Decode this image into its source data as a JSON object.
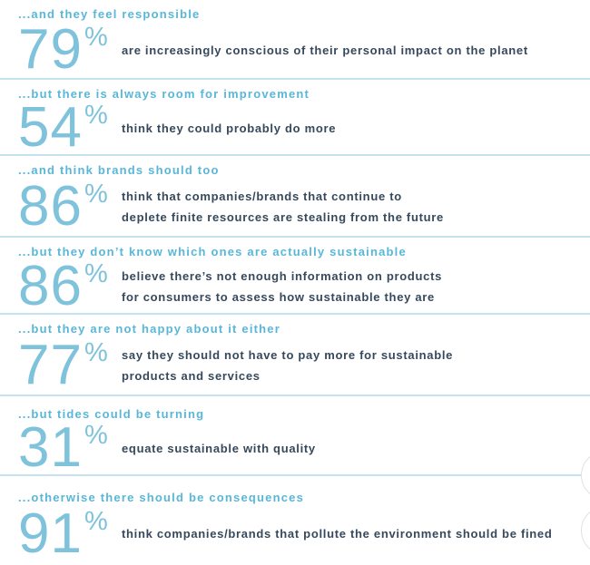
{
  "theme": {
    "heading_blue": "#58b7d9",
    "number_blue": "#7fc2db",
    "text_dark": "#36495c",
    "divider_blue": "#c5e3ef",
    "background": "#ffffff",
    "edge_circle_gray": "#e2e2e2"
  },
  "stats": [
    {
      "heading": "...and they feel responsible",
      "value": "79",
      "percent_sign": "%",
      "description": "are increasingly conscious of their personal impact on the planet"
    },
    {
      "heading": "...but there is always room for improvement",
      "value": "54",
      "percent_sign": "%",
      "description": "think they could probably do more"
    },
    {
      "heading": "...and think brands should too",
      "value": "86",
      "percent_sign": "%",
      "description": "think that companies/brands that continue to\ndeplete finite resources are stealing from the future"
    },
    {
      "heading": "...but they don’t know which ones are actually sustainable",
      "value": "86",
      "percent_sign": "%",
      "description": "believe there’s not enough information on products\nfor consumers to assess how sustainable they are"
    },
    {
      "heading": "...but they are not happy about it either",
      "value": "77",
      "percent_sign": "%",
      "description": "say they should not have to pay more for sustainable\nproducts and services"
    },
    {
      "heading": "...but tides could be turning",
      "value": "31",
      "percent_sign": "%",
      "description": "equate sustainable with quality"
    },
    {
      "heading": "...otherwise there should be consequences",
      "value": "91",
      "percent_sign": "%",
      "description": "think companies/brands that pollute the environment should be fined"
    }
  ],
  "chart_data": {
    "type": "table",
    "title": "Consumer attitudes toward sustainability (survey percentages)",
    "categories": [
      "...and they feel responsible",
      "...but there is always room for improvement",
      "...and think brands should too",
      "...but they don’t know which ones are actually sustainable",
      "...but they are not happy about it either",
      "...but tides could be turning",
      "...otherwise there should be consequences"
    ],
    "values": [
      79,
      54,
      86,
      86,
      77,
      31,
      91
    ],
    "labels": [
      "are increasingly conscious of their personal impact on the planet",
      "think they could probably do more",
      "think that companies/brands that continue to deplete finite resources are stealing from the future",
      "believe there’s not enough information on products for consumers to assess how sustainable they are",
      "say they should not have to pay more for sustainable products and services",
      "equate sustainable with quality",
      "think companies/brands that pollute the environment should be fined"
    ],
    "unit": "%"
  }
}
